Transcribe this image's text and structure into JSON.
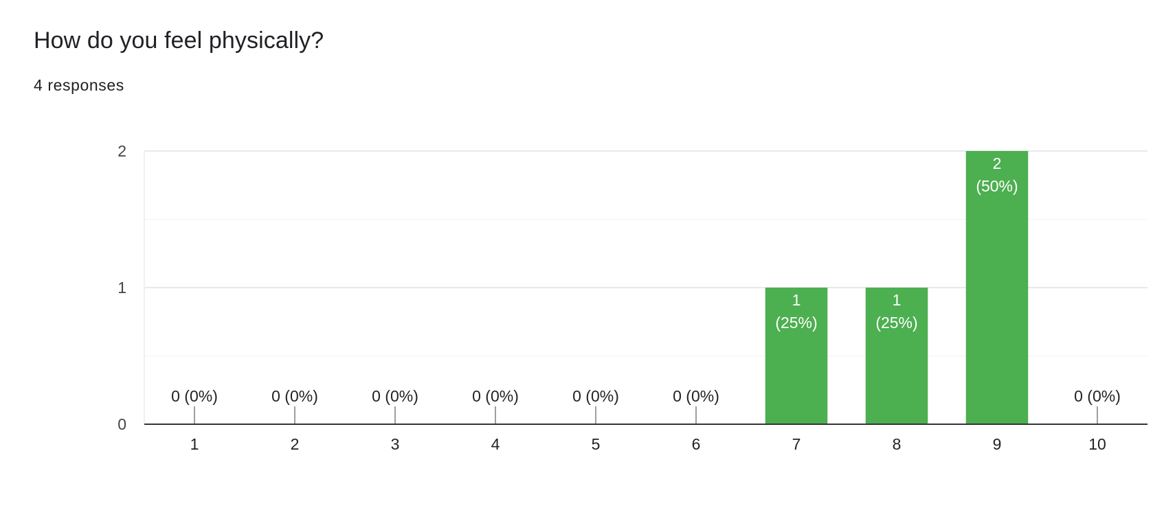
{
  "question": {
    "title": "How do you feel physically?",
    "responses": "4 responses"
  },
  "chart_data": {
    "type": "bar",
    "categories": [
      "1",
      "2",
      "3",
      "4",
      "5",
      "6",
      "7",
      "8",
      "9",
      "10"
    ],
    "values": [
      0,
      0,
      0,
      0,
      0,
      0,
      1,
      1,
      2,
      0
    ],
    "percentages": [
      "0%",
      "0%",
      "0%",
      "0%",
      "0%",
      "0%",
      "25%",
      "25%",
      "50%",
      "0%"
    ],
    "ylim": [
      0,
      2
    ],
    "yticks": [
      0,
      1,
      2
    ],
    "grid": true,
    "bar_color": "#4caf50",
    "zero_marker_color": "#9e9e9e"
  }
}
